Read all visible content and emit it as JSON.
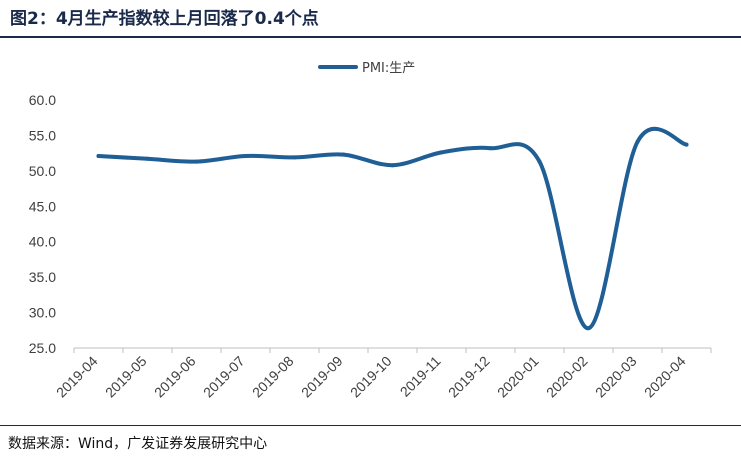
{
  "header": {
    "title": "图2：4月生产指数较上月回落了0.4个点"
  },
  "footer": {
    "source": "数据来源：Wind，广发证券发展研究中心"
  },
  "chart_data": {
    "type": "line",
    "title": "图2：4月生产指数较上月回落了0.4个点",
    "categories": [
      "2019-04",
      "2019-05",
      "2019-06",
      "2019-07",
      "2019-08",
      "2019-09",
      "2019-10",
      "2019-11",
      "2019-12",
      "2020-01",
      "2020-02",
      "2020-03",
      "2020-04"
    ],
    "series": [
      {
        "name": "PMI:生产",
        "values": [
          52.1,
          51.7,
          51.3,
          52.1,
          51.9,
          52.3,
          50.8,
          52.6,
          53.2,
          51.3,
          27.8,
          54.1,
          53.7
        ]
      }
    ],
    "ylim": [
      25,
      60
    ],
    "yticks": [
      "60.0",
      "55.0",
      "50.0",
      "45.0",
      "40.0",
      "35.0",
      "30.0",
      "25.0"
    ],
    "xlabel": "",
    "ylabel": "",
    "legend": "top-center",
    "grid": false,
    "colors": {
      "series": "#1f5f96",
      "axis": "#bfbfbf",
      "text": "#404040"
    }
  }
}
